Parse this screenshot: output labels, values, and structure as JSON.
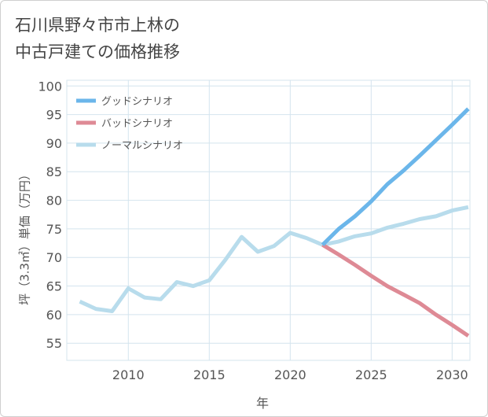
{
  "title_lines": [
    "石川県野々市市上林の",
    "中古戸建ての価格推移"
  ],
  "chart_data": {
    "type": "line",
    "ylabel": "坪（3.3㎡）単価（万円）",
    "xlabel": "年",
    "xlim": [
      2006.2,
      2031.1
    ],
    "ylim": [
      52,
      101
    ],
    "xticks": [
      2010,
      2015,
      2020,
      2025,
      2030
    ],
    "yticks": [
      55,
      60,
      65,
      70,
      75,
      80,
      85,
      90,
      95,
      100
    ],
    "grid": true,
    "legend_position": "top-left",
    "series": [
      {
        "name": "グッドシナリオ",
        "color": "#6bb6ea",
        "points": [
          [
            2022,
            72.2
          ],
          [
            2023,
            75.0
          ],
          [
            2024,
            77.2
          ],
          [
            2025,
            79.8
          ],
          [
            2026,
            82.8
          ],
          [
            2027,
            85.2
          ],
          [
            2028,
            87.8
          ],
          [
            2029,
            90.5
          ],
          [
            2030,
            93.2
          ],
          [
            2031,
            96.0
          ]
        ]
      },
      {
        "name": "バッドシナリオ",
        "color": "#de8a95",
        "points": [
          [
            2022,
            72.2
          ],
          [
            2023,
            70.5
          ],
          [
            2024,
            68.7
          ],
          [
            2025,
            66.8
          ],
          [
            2026,
            65.0
          ],
          [
            2027,
            63.5
          ],
          [
            2028,
            62.0
          ],
          [
            2029,
            60.0
          ],
          [
            2030,
            58.2
          ],
          [
            2031,
            56.3
          ]
        ]
      },
      {
        "name": "ノーマルシナリオ",
        "color": "#b8dcec",
        "points": [
          [
            2007,
            62.3
          ],
          [
            2008,
            61.0
          ],
          [
            2009,
            60.6
          ],
          [
            2010,
            64.6
          ],
          [
            2011,
            63.0
          ],
          [
            2012,
            62.7
          ],
          [
            2013,
            65.7
          ],
          [
            2014,
            65.0
          ],
          [
            2015,
            66.0
          ],
          [
            2016,
            69.6
          ],
          [
            2017,
            73.6
          ],
          [
            2018,
            71.0
          ],
          [
            2019,
            72.0
          ],
          [
            2020,
            74.3
          ],
          [
            2021,
            73.4
          ],
          [
            2022,
            72.2
          ],
          [
            2023,
            72.8
          ],
          [
            2024,
            73.7
          ],
          [
            2025,
            74.2
          ],
          [
            2026,
            75.2
          ],
          [
            2027,
            75.9
          ],
          [
            2028,
            76.7
          ],
          [
            2029,
            77.2
          ],
          [
            2030,
            78.2
          ],
          [
            2031,
            78.8
          ]
        ]
      }
    ]
  }
}
